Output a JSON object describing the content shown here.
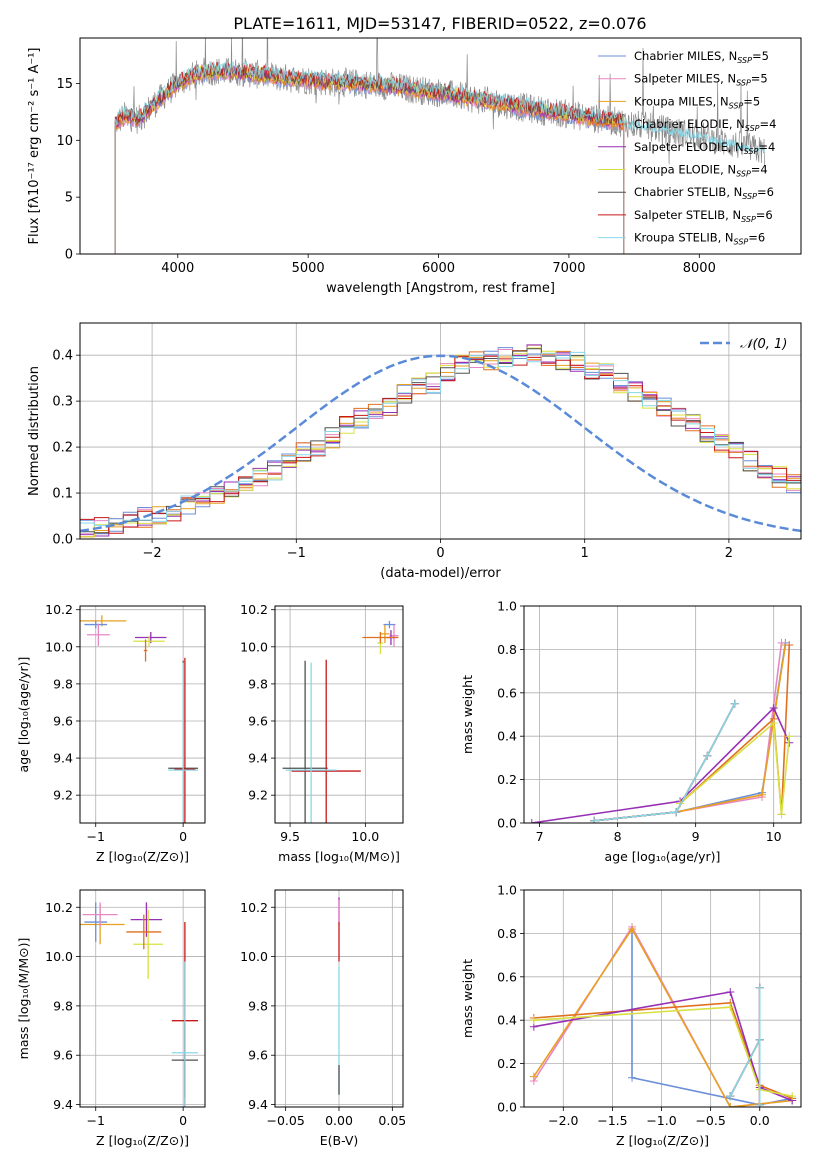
{
  "figure_title": "PLATE=1611, MJD=53147, FIBERID=0522, z=0.076",
  "model_colors": {
    "Chabrier MILES": "#6b8fd8",
    "Salpeter MILES": "#e887c6",
    "Kroupa MILES": "#e8a020",
    "Chabrier ELODIE": "#e07020",
    "Salpeter ELODIE": "#9630b4",
    "Kroupa ELODIE": "#d8e040",
    "Chabrier STELIB": "#505050",
    "Salpeter STELIB": "#c81818",
    "Kroupa STELIB": "#88d8e8"
  },
  "chart_data": [
    {
      "id": "spectrum",
      "type": "line",
      "title": "",
      "xlabel": "wavelength [Angstrom, rest frame]",
      "ylabel": "Flux [fλ10⁻¹⁷ erg cm⁻² s⁻¹ A⁻¹]",
      "xlim": [
        3250,
        8780
      ],
      "ylim": [
        0,
        19
      ],
      "xticks": [
        4000,
        5000,
        6000,
        7000,
        8000
      ],
      "yticks": [
        0,
        5,
        10,
        15
      ],
      "grid": false,
      "legend_position": "top-right",
      "legend": [
        "Chabrier MILES, N_SSP=5",
        "Salpeter MILES, N_SSP=5",
        "Kroupa MILES, N_SSP=5",
        "Chabrier ELODIE, N_SSP=4",
        "Salpeter ELODIE, N_SSP=4",
        "Kroupa ELODIE, N_SSP=4",
        "Chabrier STELIB, N_SSP=6",
        "Salpeter STELIB, N_SSP=6",
        "Kroupa STELIB, N_SSP=6"
      ],
      "continuum": {
        "x": [
          3520,
          3600,
          3700,
          3800,
          3900,
          4000,
          4100,
          4200,
          4300,
          4400,
          4500,
          4600,
          4700,
          4800,
          4900,
          5000,
          5200,
          5400,
          5600,
          5800,
          6000,
          6200,
          6400,
          6600,
          6800,
          7000,
          7200,
          7400,
          7600,
          7800,
          8000,
          8200,
          8400,
          8500
        ],
        "y": [
          11.5,
          12.2,
          11.8,
          13.0,
          14.0,
          15.0,
          15.6,
          16.0,
          16.1,
          16.0,
          16.0,
          15.8,
          15.7,
          15.5,
          15.4,
          15.3,
          15.1,
          15.0,
          14.8,
          14.5,
          14.2,
          13.8,
          13.4,
          13.0,
          12.6,
          12.3,
          11.9,
          11.6,
          11.2,
          10.8,
          10.4,
          9.8,
          9.3,
          9.0
        ]
      },
      "notes_models_end_x": 7420,
      "data_end_x": 8500
    },
    {
      "id": "residual-hist",
      "type": "line",
      "title": "",
      "xlabel": "(data-model)/error",
      "ylabel": "Normed distribution",
      "xlim": [
        -2.5,
        2.5
      ],
      "ylim": [
        0,
        0.47
      ],
      "xticks": [
        -2,
        -1,
        0,
        1,
        2
      ],
      "yticks": [
        0.0,
        0.1,
        0.2,
        0.3,
        0.4
      ],
      "grid": true,
      "legend_position": "top-right",
      "legend": [
        "𝒩(0, 1)"
      ],
      "normal": {
        "mean": 0,
        "sigma": 1
      },
      "bin_edges_start": -2.5,
      "bin_width": 0.1,
      "base_values": [
        0.022,
        0.028,
        0.033,
        0.04,
        0.047,
        0.054,
        0.061,
        0.072,
        0.083,
        0.094,
        0.106,
        0.12,
        0.135,
        0.15,
        0.17,
        0.188,
        0.2,
        0.22,
        0.245,
        0.262,
        0.275,
        0.29,
        0.315,
        0.33,
        0.34,
        0.365,
        0.38,
        0.385,
        0.39,
        0.395,
        0.4,
        0.4,
        0.395,
        0.39,
        0.385,
        0.37,
        0.36,
        0.34,
        0.32,
        0.3,
        0.285,
        0.265,
        0.25,
        0.23,
        0.21,
        0.19,
        0.17,
        0.15,
        0.135,
        0.118,
        0.1,
        0.085,
        0.07,
        0.06,
        0.052,
        0.045,
        0.038,
        0.032,
        0.028,
        0.024
      ]
    },
    {
      "id": "age-vs-z",
      "type": "scatter",
      "title": "",
      "xlabel": "Z [log₁₀(Z/Z⊙)]",
      "ylabel": "age  [log₁₀(age/yr)]",
      "xlim": [
        -1.18,
        0.25
      ],
      "ylim": [
        9.05,
        10.22
      ],
      "xticks": [
        -1,
        0
      ],
      "yticks": [
        9.2,
        9.4,
        9.6,
        9.8,
        10.0,
        10.2
      ],
      "grid": true,
      "points": [
        {
          "model": "Kroupa MILES",
          "x": -0.93,
          "y": 10.14,
          "xerr": 0.28,
          "yerr": 0.03
        },
        {
          "model": "Chabrier MILES",
          "x": -1.0,
          "y": 10.12,
          "xerr": 0.13,
          "yerr": 0.02
        },
        {
          "model": "Salpeter MILES",
          "x": -0.97,
          "y": 10.065,
          "xerr": 0.13,
          "yerr": 0.06
        },
        {
          "model": "Salpeter ELODIE",
          "x": -0.37,
          "y": 10.05,
          "xerr": 0.18,
          "yerr": 0.03
        },
        {
          "model": "Kroupa ELODIE",
          "x": -0.39,
          "y": 10.03,
          "xerr": 0.18,
          "yerr": 0.03
        },
        {
          "model": "Chabrier ELODIE",
          "x": -0.43,
          "y": 9.98,
          "xerr": 0.02,
          "yerr": 0.06
        },
        {
          "model": "Chabrier STELIB",
          "x": 0.0,
          "y": 9.345,
          "xerr": 0.17,
          "yerr": 0.58
        },
        {
          "model": "Salpeter STELIB",
          "x": 0.02,
          "y": 9.34,
          "xerr": 0.12,
          "yerr": 0.6
        },
        {
          "model": "Kroupa STELIB",
          "x": 0.0,
          "y": 9.335,
          "xerr": 0.17,
          "yerr": 0.58
        }
      ]
    },
    {
      "id": "age-vs-mass",
      "type": "scatter",
      "title": "",
      "xlabel": "mass [log₁₀(M/M⊙)]",
      "ylabel": "",
      "xlim": [
        9.4,
        10.25
      ],
      "ylim": [
        9.05,
        10.22
      ],
      "xticks": [
        9.5,
        10.0
      ],
      "yticks": [
        9.2,
        9.4,
        9.6,
        9.8,
        10.0,
        10.2
      ],
      "grid": true,
      "points": [
        {
          "model": "Kroupa MILES",
          "x": 10.13,
          "y": 10.07,
          "xerr": 0.03,
          "yerr": 0.05
        },
        {
          "model": "Chabrier MILES",
          "x": 10.16,
          "y": 10.12,
          "xerr": 0.04,
          "yerr": 0.02
        },
        {
          "model": "Salpeter MILES",
          "x": 10.19,
          "y": 10.06,
          "xerr": 0.03,
          "yerr": 0.06
        },
        {
          "model": "Salpeter ELODIE",
          "x": 10.17,
          "y": 10.05,
          "xerr": 0.03,
          "yerr": 0.04
        },
        {
          "model": "Kroupa ELODIE",
          "x": 10.1,
          "y": 10.02,
          "xerr": 0.02,
          "yerr": 0.06
        },
        {
          "model": "Chabrier ELODIE",
          "x": 10.1,
          "y": 10.05,
          "xerr": 0.12,
          "yerr": 0.03
        },
        {
          "model": "Chabrier STELIB",
          "x": 9.6,
          "y": 9.345,
          "xerr": 0.15,
          "yerr": 0.58
        },
        {
          "model": "Salpeter STELIB",
          "x": 9.74,
          "y": 9.33,
          "xerr": 0.23,
          "yerr": 0.6
        },
        {
          "model": "Kroupa STELIB",
          "x": 9.64,
          "y": 9.335,
          "xerr": 0.17,
          "yerr": 0.58
        }
      ]
    },
    {
      "id": "weight-vs-age",
      "type": "line",
      "title": "",
      "xlabel": "age  [log₁₀(age/yr)]",
      "ylabel": "mass weight",
      "xlim": [
        6.8,
        10.35
      ],
      "ylim": [
        0,
        1.0
      ],
      "xticks": [
        7,
        8,
        9,
        10
      ],
      "yticks": [
        0.0,
        0.2,
        0.4,
        0.6,
        0.8,
        1.0
      ],
      "grid": true,
      "series": [
        {
          "model": "Chabrier MILES",
          "x": [
            7.7,
            8.75,
            9.85,
            10.15
          ],
          "y": [
            0.01,
            0.05,
            0.14,
            0.83
          ]
        },
        {
          "model": "Salpeter MILES",
          "x": [
            7.7,
            8.75,
            9.85,
            10.1
          ],
          "y": [
            0.01,
            0.05,
            0.12,
            0.83
          ]
        },
        {
          "model": "Kroupa MILES",
          "x": [
            7.7,
            8.75,
            9.85,
            10.15
          ],
          "y": [
            0.01,
            0.05,
            0.13,
            0.82
          ]
        },
        {
          "model": "Chabrier ELODIE",
          "x": [
            8.8,
            10.0,
            10.1,
            10.2
          ],
          "y": [
            0.09,
            0.48,
            0.04,
            0.82
          ]
        },
        {
          "model": "Salpeter ELODIE",
          "x": [
            6.9,
            8.8,
            10.0,
            10.2
          ],
          "y": [
            0.0,
            0.1,
            0.53,
            0.37
          ]
        },
        {
          "model": "Kroupa ELODIE",
          "x": [
            8.8,
            10.0,
            10.1,
            10.2
          ],
          "y": [
            0.09,
            0.46,
            0.04,
            0.4
          ]
        },
        {
          "model": "Chabrier STELIB",
          "x": [
            7.7,
            8.75,
            9.15,
            9.5
          ],
          "y": [
            0.01,
            0.05,
            0.31,
            0.55
          ]
        },
        {
          "model": "Salpeter STELIB",
          "x": [
            7.7,
            8.75,
            9.15,
            9.5
          ],
          "y": [
            0.01,
            0.05,
            0.31,
            0.55
          ]
        },
        {
          "model": "Kroupa STELIB",
          "x": [
            7.7,
            8.75,
            9.15,
            9.5
          ],
          "y": [
            0.01,
            0.05,
            0.31,
            0.55
          ]
        }
      ]
    },
    {
      "id": "mass-vs-z",
      "type": "scatter",
      "title": "",
      "xlabel": "Z [log₁₀(Z/Z⊙)]",
      "ylabel": "mass [log₁₀(M/M⊙)]",
      "xlim": [
        -1.18,
        0.25
      ],
      "ylim": [
        9.39,
        10.27
      ],
      "xticks": [
        -1,
        0
      ],
      "yticks": [
        9.4,
        9.6,
        9.8,
        10.0,
        10.2
      ],
      "grid": true,
      "points": [
        {
          "model": "Kroupa MILES",
          "x": -0.95,
          "y": 10.13,
          "xerr": 0.28,
          "yerr": 0.08
        },
        {
          "model": "Chabrier MILES",
          "x": -1.0,
          "y": 10.14,
          "xerr": 0.13,
          "yerr": 0.08
        },
        {
          "model": "Salpeter MILES",
          "x": -0.95,
          "y": 10.17,
          "xerr": 0.2,
          "yerr": 0.05
        },
        {
          "model": "Salpeter ELODIE",
          "x": -0.42,
          "y": 10.15,
          "xerr": 0.18,
          "yerr": 0.07
        },
        {
          "model": "Kroupa ELODIE",
          "x": -0.4,
          "y": 10.05,
          "xerr": 0.17,
          "yerr": 0.14
        },
        {
          "model": "Chabrier ELODIE",
          "x": -0.45,
          "y": 10.1,
          "xerr": 0.2,
          "yerr": 0.07
        },
        {
          "model": "Chabrier STELIB",
          "x": 0.02,
          "y": 9.58,
          "xerr": 0.15,
          "yerr": 0.15
        },
        {
          "model": "Salpeter STELIB",
          "x": 0.02,
          "y": 9.74,
          "xerr": 0.15,
          "yerr": 0.4
        },
        {
          "model": "Kroupa STELIB",
          "x": 0.02,
          "y": 9.61,
          "xerr": 0.15,
          "yerr": 0.37
        }
      ]
    },
    {
      "id": "mass-vs-ebv",
      "type": "scatter",
      "title": "",
      "xlabel": "E(B-V)",
      "ylabel": "",
      "xlim": [
        -0.06,
        0.06
      ],
      "ylim": [
        9.39,
        10.27
      ],
      "xticks": [
        -0.05,
        0.0,
        0.05
      ],
      "yticks": [
        9.4,
        9.6,
        9.8,
        10.0,
        10.2
      ],
      "grid": true,
      "points": [
        {
          "model": "Salpeter ELODIE",
          "x": 0.0,
          "y": 10.19,
          "xerr": 0.0,
          "yerr": 0.05
        },
        {
          "model": "Salpeter MILES",
          "x": 0.0,
          "y": 10.18,
          "xerr": 0.0,
          "yerr": 0.05
        },
        {
          "model": "Salpeter STELIB",
          "x": 0.0,
          "y": 10.06,
          "xerr": 0.0,
          "yerr": 0.08
        },
        {
          "model": "Kroupa STELIB",
          "x": 0.0,
          "y": 9.7,
          "xerr": 0.0,
          "yerr": 0.26
        },
        {
          "model": "Chabrier STELIB",
          "x": 0.0,
          "y": 9.5,
          "xerr": 0.0,
          "yerr": 0.06
        }
      ]
    },
    {
      "id": "weight-vs-z",
      "type": "line",
      "title": "",
      "xlabel": "Z [log₁₀(Z/Z⊙)]",
      "ylabel": "mass weight",
      "xlim": [
        -2.4,
        0.42
      ],
      "ylim": [
        0,
        1.0
      ],
      "xticks": [
        -2.0,
        -1.5,
        -1.0,
        -0.5,
        0.0
      ],
      "yticks": [
        0.0,
        0.2,
        0.4,
        0.6,
        0.8,
        1.0
      ],
      "grid": true,
      "series": [
        {
          "model": "Chabrier MILES",
          "x": [
            -1.3,
            -1.3,
            0.0,
            0.33
          ],
          "y": [
            0.82,
            0.135,
            0.01,
            0.04
          ]
        },
        {
          "model": "Salpeter MILES",
          "x": [
            -2.3,
            -1.3,
            -0.3,
            0.33
          ],
          "y": [
            0.12,
            0.83,
            0.0,
            0.03
          ]
        },
        {
          "model": "Kroupa MILES",
          "x": [
            -2.3,
            -1.3,
            -0.3,
            0.33
          ],
          "y": [
            0.14,
            0.82,
            0.0,
            0.03
          ]
        },
        {
          "model": "Chabrier ELODIE",
          "x": [
            -2.3,
            -0.3,
            0.0,
            0.33
          ],
          "y": [
            0.41,
            0.48,
            0.1,
            0.04
          ]
        },
        {
          "model": "Salpeter ELODIE",
          "x": [
            -2.3,
            -0.3,
            0.0,
            0.33
          ],
          "y": [
            0.37,
            0.53,
            0.09,
            0.03
          ]
        },
        {
          "model": "Kroupa ELODIE",
          "x": [
            -2.3,
            -0.3,
            0.0,
            0.33
          ],
          "y": [
            0.4,
            0.46,
            0.08,
            0.05
          ]
        },
        {
          "model": "Chabrier STELIB",
          "x": [
            -0.3,
            0.0,
            0.0,
            0.0
          ],
          "y": [
            0.05,
            0.31,
            0.55,
            0.01
          ]
        },
        {
          "model": "Salpeter STELIB",
          "x": [
            -0.3,
            0.0,
            0.0,
            0.0
          ],
          "y": [
            0.05,
            0.31,
            0.55,
            0.01
          ]
        },
        {
          "model": "Kroupa STELIB",
          "x": [
            -0.3,
            0.0,
            0.0,
            0.0
          ],
          "y": [
            0.05,
            0.31,
            0.55,
            0.01
          ]
        }
      ]
    }
  ]
}
